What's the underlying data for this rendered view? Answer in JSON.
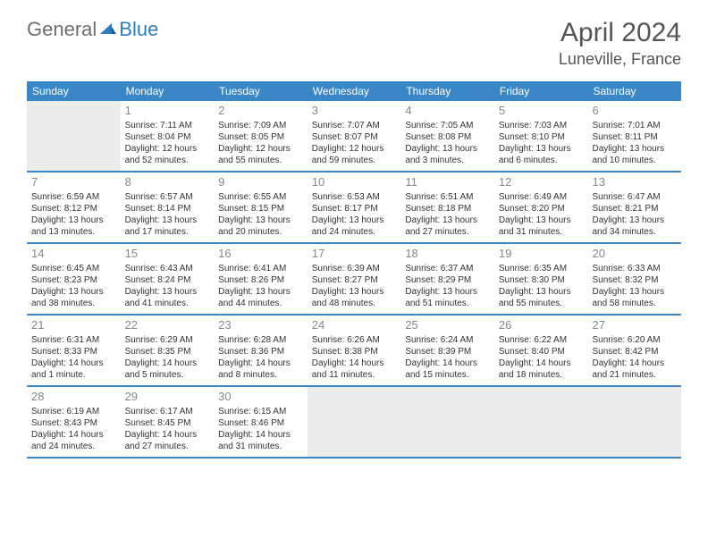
{
  "logo": {
    "part1": "General",
    "part2": "Blue"
  },
  "title": "April 2024",
  "location": "Luneville, France",
  "header_bg": "#3a87c7",
  "divider_color": "#3a87c7",
  "empty_bg": "#ebebeb",
  "text_color": "#333333",
  "daynum_color": "#888888",
  "weekdays": [
    "Sunday",
    "Monday",
    "Tuesday",
    "Wednesday",
    "Thursday",
    "Friday",
    "Saturday"
  ],
  "weeks": [
    [
      null,
      {
        "n": "1",
        "sunrise": "7:11 AM",
        "sunset": "8:04 PM",
        "dl1": "Daylight: 12 hours",
        "dl2": "and 52 minutes."
      },
      {
        "n": "2",
        "sunrise": "7:09 AM",
        "sunset": "8:05 PM",
        "dl1": "Daylight: 12 hours",
        "dl2": "and 55 minutes."
      },
      {
        "n": "3",
        "sunrise": "7:07 AM",
        "sunset": "8:07 PM",
        "dl1": "Daylight: 12 hours",
        "dl2": "and 59 minutes."
      },
      {
        "n": "4",
        "sunrise": "7:05 AM",
        "sunset": "8:08 PM",
        "dl1": "Daylight: 13 hours",
        "dl2": "and 3 minutes."
      },
      {
        "n": "5",
        "sunrise": "7:03 AM",
        "sunset": "8:10 PM",
        "dl1": "Daylight: 13 hours",
        "dl2": "and 6 minutes."
      },
      {
        "n": "6",
        "sunrise": "7:01 AM",
        "sunset": "8:11 PM",
        "dl1": "Daylight: 13 hours",
        "dl2": "and 10 minutes."
      }
    ],
    [
      {
        "n": "7",
        "sunrise": "6:59 AM",
        "sunset": "8:12 PM",
        "dl1": "Daylight: 13 hours",
        "dl2": "and 13 minutes."
      },
      {
        "n": "8",
        "sunrise": "6:57 AM",
        "sunset": "8:14 PM",
        "dl1": "Daylight: 13 hours",
        "dl2": "and 17 minutes."
      },
      {
        "n": "9",
        "sunrise": "6:55 AM",
        "sunset": "8:15 PM",
        "dl1": "Daylight: 13 hours",
        "dl2": "and 20 minutes."
      },
      {
        "n": "10",
        "sunrise": "6:53 AM",
        "sunset": "8:17 PM",
        "dl1": "Daylight: 13 hours",
        "dl2": "and 24 minutes."
      },
      {
        "n": "11",
        "sunrise": "6:51 AM",
        "sunset": "8:18 PM",
        "dl1": "Daylight: 13 hours",
        "dl2": "and 27 minutes."
      },
      {
        "n": "12",
        "sunrise": "6:49 AM",
        "sunset": "8:20 PM",
        "dl1": "Daylight: 13 hours",
        "dl2": "and 31 minutes."
      },
      {
        "n": "13",
        "sunrise": "6:47 AM",
        "sunset": "8:21 PM",
        "dl1": "Daylight: 13 hours",
        "dl2": "and 34 minutes."
      }
    ],
    [
      {
        "n": "14",
        "sunrise": "6:45 AM",
        "sunset": "8:23 PM",
        "dl1": "Daylight: 13 hours",
        "dl2": "and 38 minutes."
      },
      {
        "n": "15",
        "sunrise": "6:43 AM",
        "sunset": "8:24 PM",
        "dl1": "Daylight: 13 hours",
        "dl2": "and 41 minutes."
      },
      {
        "n": "16",
        "sunrise": "6:41 AM",
        "sunset": "8:26 PM",
        "dl1": "Daylight: 13 hours",
        "dl2": "and 44 minutes."
      },
      {
        "n": "17",
        "sunrise": "6:39 AM",
        "sunset": "8:27 PM",
        "dl1": "Daylight: 13 hours",
        "dl2": "and 48 minutes."
      },
      {
        "n": "18",
        "sunrise": "6:37 AM",
        "sunset": "8:29 PM",
        "dl1": "Daylight: 13 hours",
        "dl2": "and 51 minutes."
      },
      {
        "n": "19",
        "sunrise": "6:35 AM",
        "sunset": "8:30 PM",
        "dl1": "Daylight: 13 hours",
        "dl2": "and 55 minutes."
      },
      {
        "n": "20",
        "sunrise": "6:33 AM",
        "sunset": "8:32 PM",
        "dl1": "Daylight: 13 hours",
        "dl2": "and 58 minutes."
      }
    ],
    [
      {
        "n": "21",
        "sunrise": "6:31 AM",
        "sunset": "8:33 PM",
        "dl1": "Daylight: 14 hours",
        "dl2": "and 1 minute."
      },
      {
        "n": "22",
        "sunrise": "6:29 AM",
        "sunset": "8:35 PM",
        "dl1": "Daylight: 14 hours",
        "dl2": "and 5 minutes."
      },
      {
        "n": "23",
        "sunrise": "6:28 AM",
        "sunset": "8:36 PM",
        "dl1": "Daylight: 14 hours",
        "dl2": "and 8 minutes."
      },
      {
        "n": "24",
        "sunrise": "6:26 AM",
        "sunset": "8:38 PM",
        "dl1": "Daylight: 14 hours",
        "dl2": "and 11 minutes."
      },
      {
        "n": "25",
        "sunrise": "6:24 AM",
        "sunset": "8:39 PM",
        "dl1": "Daylight: 14 hours",
        "dl2": "and 15 minutes."
      },
      {
        "n": "26",
        "sunrise": "6:22 AM",
        "sunset": "8:40 PM",
        "dl1": "Daylight: 14 hours",
        "dl2": "and 18 minutes."
      },
      {
        "n": "27",
        "sunrise": "6:20 AM",
        "sunset": "8:42 PM",
        "dl1": "Daylight: 14 hours",
        "dl2": "and 21 minutes."
      }
    ],
    [
      {
        "n": "28",
        "sunrise": "6:19 AM",
        "sunset": "8:43 PM",
        "dl1": "Daylight: 14 hours",
        "dl2": "and 24 minutes."
      },
      {
        "n": "29",
        "sunrise": "6:17 AM",
        "sunset": "8:45 PM",
        "dl1": "Daylight: 14 hours",
        "dl2": "and 27 minutes."
      },
      {
        "n": "30",
        "sunrise": "6:15 AM",
        "sunset": "8:46 PM",
        "dl1": "Daylight: 14 hours",
        "dl2": "and 31 minutes."
      },
      null,
      null,
      null,
      null
    ]
  ]
}
